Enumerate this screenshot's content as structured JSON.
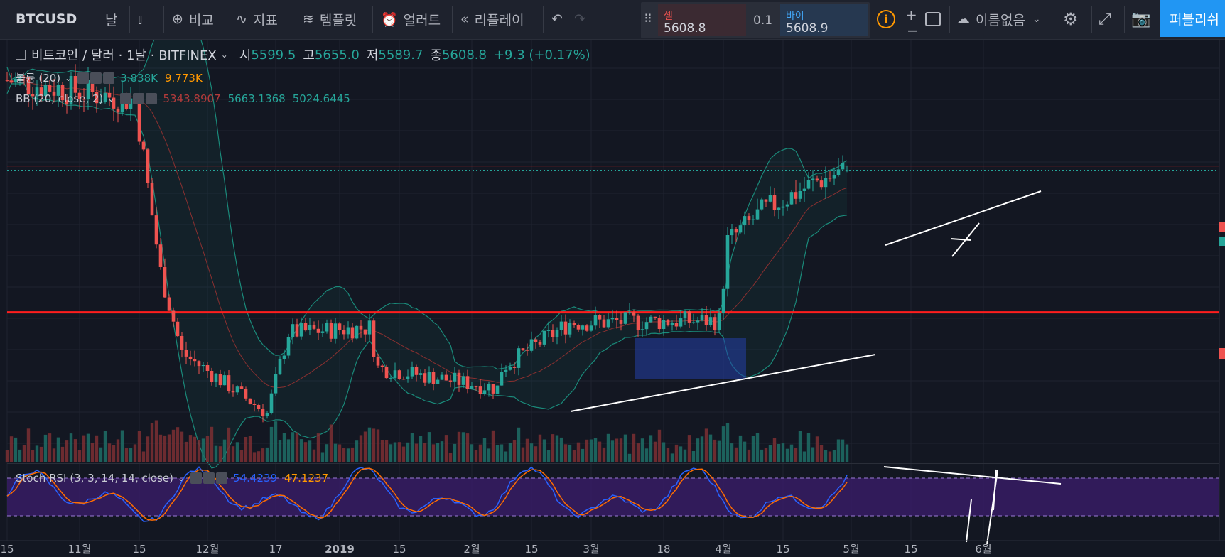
{
  "toolbar": {
    "symbol": "BTCUSD",
    "interval": "날",
    "compare": "비교",
    "indicators": "지표",
    "templates": "템플릿",
    "alert": "얼러트",
    "replay": "리플레이",
    "sell_label": "셀",
    "sell_price": "5608.8",
    "spread": "0.1",
    "buy_label": "바이",
    "buy_price": "5608.9",
    "layout_name": "이름없음",
    "publish": "퍼블리쉬"
  },
  "legend": {
    "title": "비트코인 / 달러 · 1날 · BITFINEX",
    "o_label": "시",
    "o": "5599.5",
    "h_label": "고",
    "h": "5655.0",
    "l_label": "저",
    "l": "5589.7",
    "c_label": "종",
    "c": "5608.8",
    "change": "+9.3 (+0.17%)",
    "volume_label": "볼륨 (20)",
    "volume_v1": "3.838K",
    "volume_v2": "9.773K",
    "bb_label": "BB (20, close, 2)",
    "bb_v1": "5343.8907",
    "bb_v2": "5663.1368",
    "bb_v3": "5024.6445",
    "stoch_label": "Stoch RSI (3, 3, 14, 14, close)",
    "stoch_k": "54.4239",
    "stoch_d": "47.1237"
  },
  "chart_data": {
    "type": "candlestick",
    "symbol": "BTCUSD",
    "exchange": "BITFINEX",
    "interval": "1D",
    "ohlc_last": {
      "open": 5599.5,
      "high": 5655.0,
      "low": 5589.7,
      "close": 5608.8
    },
    "x_tick_labels": [
      "15",
      "11월",
      "15",
      "12월",
      "17",
      "2019",
      "15",
      "2월",
      "15",
      "3월",
      "18",
      "4월",
      "15",
      "5월",
      "15",
      "6월"
    ],
    "price_anchors": [
      {
        "date": "2018-10-15",
        "price": 6500
      },
      {
        "date": "2018-11-14",
        "price": 6300
      },
      {
        "date": "2018-11-20",
        "price": 4600
      },
      {
        "date": "2018-11-25",
        "price": 3800
      },
      {
        "date": "2018-12-15",
        "price": 3200
      },
      {
        "date": "2018-12-20",
        "price": 4000
      },
      {
        "date": "2019-01-08",
        "price": 4050
      },
      {
        "date": "2019-01-10",
        "price": 3650
      },
      {
        "date": "2019-02-07",
        "price": 3450
      },
      {
        "date": "2019-02-08",
        "price": 3650
      },
      {
        "date": "2019-02-24",
        "price": 4100
      },
      {
        "date": "2019-03-31",
        "price": 4120
      },
      {
        "date": "2019-04-02",
        "price": 4900
      },
      {
        "date": "2019-04-10",
        "price": 5200
      },
      {
        "date": "2019-04-23",
        "price": 5500
      },
      {
        "date": "2019-04-30",
        "price": 5608.8
      }
    ],
    "horizontal_lines": [
      4200,
      5650
    ],
    "price_range": [
      3100,
      6900
    ],
    "stoch_rsi_levels": [
      80,
      20
    ],
    "colors": {
      "up": "#26a69a",
      "down": "#ef5350",
      "bb": "#1a8a7a",
      "stoch_k": "#2962ff",
      "stoch_d": "#ff6d00",
      "hline": "#ff1e1e"
    }
  }
}
